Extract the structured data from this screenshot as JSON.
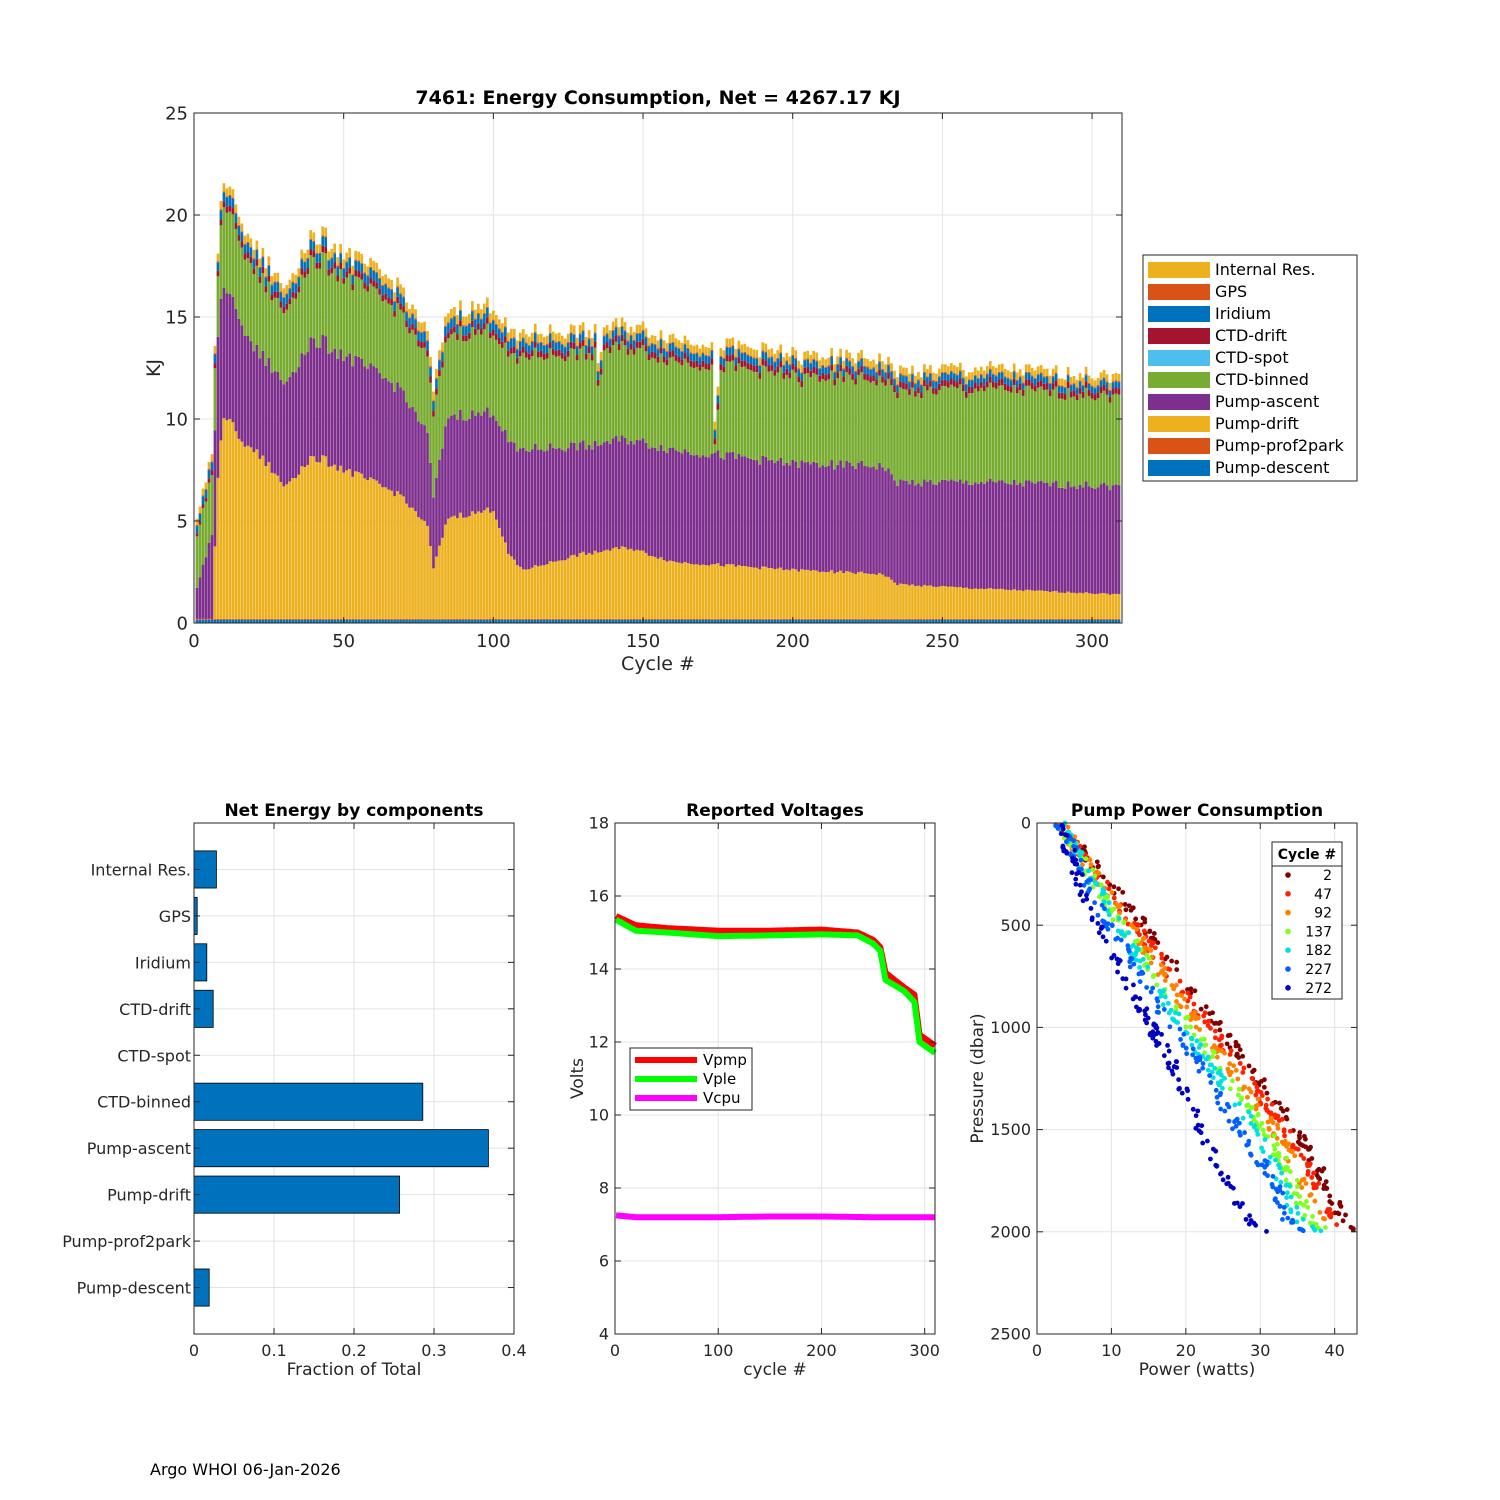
{
  "footer": "Argo WHOI 06-Jan-2026",
  "chart_data": [
    {
      "id": "energy",
      "type": "bar",
      "stacked": true,
      "title": "7461: Energy Consumption,  Net = 4267.17 KJ",
      "xlabel": "Cycle #",
      "ylabel": "KJ",
      "xlim": [
        0,
        310
      ],
      "ylim": [
        0,
        25
      ],
      "xticks": [
        0,
        50,
        100,
        150,
        200,
        250,
        300
      ],
      "yticks": [
        0,
        5,
        10,
        15,
        20,
        25
      ],
      "grid": true,
      "legend_position": "right",
      "series": [
        {
          "name": "Pump-descent",
          "color": "#0072BD",
          "anchors": [
            [
              1,
              0.15
            ],
            [
              310,
              0.15
            ]
          ]
        },
        {
          "name": "Pump-prof2park",
          "color": "#D95319",
          "anchors": [
            [
              1,
              0.05
            ],
            [
              310,
              0.05
            ]
          ]
        },
        {
          "name": "Pump-drift",
          "color": "#EDB120",
          "anchors": [
            [
              1,
              0
            ],
            [
              6,
              0
            ],
            [
              8,
              7
            ],
            [
              10,
              10
            ],
            [
              15,
              9
            ],
            [
              25,
              7.5
            ],
            [
              30,
              6.5
            ],
            [
              40,
              8
            ],
            [
              55,
              7
            ],
            [
              70,
              6
            ],
            [
              78,
              4.5
            ],
            [
              80,
              2.5
            ],
            [
              85,
              5
            ],
            [
              95,
              5.2
            ],
            [
              100,
              5.4
            ],
            [
              105,
              3.2
            ],
            [
              110,
              2.4
            ],
            [
              130,
              3.2
            ],
            [
              145,
              3.5
            ],
            [
              160,
              2.8
            ],
            [
              200,
              2.4
            ],
            [
              230,
              2.2
            ],
            [
              235,
              1.7
            ],
            [
              260,
              1.5
            ],
            [
              310,
              1.2
            ]
          ]
        },
        {
          "name": "Pump-ascent",
          "color": "#7E2F8E",
          "anchors": [
            [
              1,
              1.5
            ],
            [
              6,
              4.2
            ],
            [
              8,
              7
            ],
            [
              12,
              6
            ],
            [
              15,
              6
            ],
            [
              20,
              5
            ],
            [
              30,
              5
            ],
            [
              40,
              5.8
            ],
            [
              55,
              5.5
            ],
            [
              70,
              5.2
            ],
            [
              78,
              4.5
            ],
            [
              80,
              3.5
            ],
            [
              85,
              5
            ],
            [
              95,
              4.8
            ],
            [
              100,
              4.8
            ],
            [
              105,
              5.5
            ],
            [
              110,
              5.9
            ],
            [
              130,
              5.3
            ],
            [
              145,
              5.3
            ],
            [
              160,
              5.5
            ],
            [
              200,
              5.2
            ],
            [
              230,
              5.3
            ],
            [
              235,
              5
            ],
            [
              260,
              5.2
            ],
            [
              310,
              5.3
            ]
          ]
        },
        {
          "name": "CTD-binned",
          "color": "#77AC30",
          "anchors": [
            [
              1,
              2.5
            ],
            [
              6,
              3
            ],
            [
              8,
              3
            ],
            [
              10,
              4
            ],
            [
              20,
              3.8
            ],
            [
              30,
              3.5
            ],
            [
              40,
              4
            ],
            [
              55,
              3.8
            ],
            [
              70,
              3.8
            ],
            [
              78,
              3.7
            ],
            [
              80,
              4
            ],
            [
              85,
              4
            ],
            [
              100,
              4
            ],
            [
              105,
              4.2
            ],
            [
              110,
              4.6
            ],
            [
              130,
              4.5
            ],
            [
              145,
              4.5
            ],
            [
              160,
              4.4
            ],
            [
              200,
              4.3
            ],
            [
              230,
              4.2
            ],
            [
              235,
              4.4
            ],
            [
              260,
              4.6
            ],
            [
              310,
              4.4
            ]
          ]
        },
        {
          "name": "CTD-spot",
          "color": "#4DBEEE",
          "anchors": [
            [
              1,
              0
            ],
            [
              310,
              0
            ]
          ]
        },
        {
          "name": "CTD-drift",
          "color": "#A2142F",
          "anchors": [
            [
              1,
              0.15
            ],
            [
              10,
              0.3
            ],
            [
              100,
              0.3
            ],
            [
              110,
              0.3
            ],
            [
              310,
              0.3
            ]
          ]
        },
        {
          "name": "Iridium",
          "color": "#0072BD",
          "anchors": [
            [
              1,
              0.35
            ],
            [
              10,
              0.45
            ],
            [
              100,
              0.45
            ],
            [
              110,
              0.4
            ],
            [
              310,
              0.3
            ]
          ]
        },
        {
          "name": "GPS",
          "color": "#D95319",
          "anchors": [
            [
              1,
              0.05
            ],
            [
              310,
              0.05
            ]
          ]
        },
        {
          "name": "Internal Res.",
          "color": "#EDB120",
          "anchors": [
            [
              1,
              0.3
            ],
            [
              10,
              0.4
            ],
            [
              100,
              0.45
            ],
            [
              110,
              0.4
            ],
            [
              310,
              0.35
            ]
          ]
        }
      ],
      "legend_order": [
        "Internal Res.",
        "GPS",
        "Iridium",
        "CTD-drift",
        "CTD-spot",
        "CTD-binned",
        "Pump-ascent",
        "Pump-drift",
        "Pump-prof2park",
        "Pump-descent"
      ],
      "dips": [
        [
          135,
          1.5
        ],
        [
          136,
          1
        ],
        [
          174,
          4
        ],
        [
          175,
          2.5
        ],
        [
          203,
          0.8
        ],
        [
          258,
          0.6
        ]
      ]
    },
    {
      "id": "components",
      "type": "bar",
      "orientation": "horizontal",
      "title": "Net Energy by components",
      "xlabel": "Fraction of Total",
      "ylabel": "",
      "xlim": [
        0,
        0.4
      ],
      "xticks": [
        0,
        0.1,
        0.2,
        0.3,
        0.4
      ],
      "xtick_labels": [
        "0",
        "0.1",
        "0.2",
        "0.3",
        "0.4"
      ],
      "grid": true,
      "color": "#0072BD",
      "categories": [
        "Internal Res.",
        "GPS",
        "Iridium",
        "CTD-drift",
        "CTD-spot",
        "CTD-binned",
        "Pump-ascent",
        "Pump-drift",
        "Pump-prof2park",
        "Pump-descent"
      ],
      "values": [
        0.028,
        0.004,
        0.016,
        0.024,
        0.0,
        0.286,
        0.368,
        0.257,
        0.0,
        0.019
      ]
    },
    {
      "id": "voltages",
      "type": "line",
      "title": "Reported Voltages",
      "xlabel": "cycle #",
      "ylabel": "Volts",
      "xlim": [
        0,
        310
      ],
      "ylim": [
        4,
        18
      ],
      "xticks": [
        0,
        100,
        200,
        300
      ],
      "yticks": [
        4,
        6,
        8,
        10,
        12,
        14,
        16,
        18
      ],
      "grid": true,
      "legend_position": "middle-left",
      "series": [
        {
          "name": "Vpmp",
          "color": "#FF0000",
          "points": [
            [
              1,
              15.45
            ],
            [
              20,
              15.2
            ],
            [
              50,
              15.12
            ],
            [
              100,
              15.05
            ],
            [
              150,
              15.05
            ],
            [
              200,
              15.08
            ],
            [
              235,
              15.0
            ],
            [
              250,
              14.8
            ],
            [
              257,
              14.6
            ],
            [
              262,
              13.9
            ],
            [
              280,
              13.5
            ],
            [
              290,
              13.3
            ],
            [
              295,
              12.2
            ],
            [
              310,
              11.9
            ]
          ]
        },
        {
          "name": "Vple",
          "color": "#00FF00",
          "points": [
            [
              1,
              15.35
            ],
            [
              20,
              15.05
            ],
            [
              50,
              15.0
            ],
            [
              100,
              14.9
            ],
            [
              150,
              14.92
            ],
            [
              200,
              14.95
            ],
            [
              235,
              14.92
            ],
            [
              250,
              14.7
            ],
            [
              257,
              14.5
            ],
            [
              262,
              13.7
            ],
            [
              280,
              13.4
            ],
            [
              290,
              13.1
            ],
            [
              295,
              12.0
            ],
            [
              310,
              11.7
            ]
          ]
        },
        {
          "name": "Vcpu",
          "color": "#FF00FF",
          "points": [
            [
              1,
              7.25
            ],
            [
              20,
              7.2
            ],
            [
              50,
              7.2
            ],
            [
              100,
              7.2
            ],
            [
              150,
              7.22
            ],
            [
              200,
              7.22
            ],
            [
              250,
              7.2
            ],
            [
              310,
              7.2
            ]
          ]
        }
      ]
    },
    {
      "id": "pump",
      "type": "scatter",
      "title": "Pump Power Consumption",
      "xlabel": "Power (watts)",
      "ylabel": "Pressure (dbar)",
      "xlim": [
        0,
        43
      ],
      "ylim": [
        0,
        2500
      ],
      "y_reversed": true,
      "xticks": [
        0,
        10,
        20,
        30,
        40
      ],
      "yticks": [
        0,
        500,
        1000,
        1500,
        2000,
        2500
      ],
      "grid": true,
      "legend_title": "Cycle #",
      "legend_position": "top-right",
      "series": [
        {
          "name": "2",
          "color": "#800000",
          "band": [
            [
              3,
              0
            ],
            [
              12,
              400
            ],
            [
              22,
              900
            ],
            [
              28,
              1200
            ],
            [
              34,
              1500
            ],
            [
              37,
              1700
            ],
            [
              40,
              1950
            ],
            [
              42,
              2000
            ]
          ],
          "offset": 1.2
        },
        {
          "name": "47",
          "color": "#FF2000",
          "band": [
            [
              3,
              0
            ],
            [
              11,
              400
            ],
            [
              21,
              900
            ],
            [
              27,
              1200
            ],
            [
              33,
              1500
            ],
            [
              36,
              1700
            ],
            [
              39,
              1950
            ],
            [
              42,
              2000
            ]
          ],
          "offset": 0.5
        },
        {
          "name": "92",
          "color": "#FF8000",
          "band": [
            [
              3,
              0
            ],
            [
              11,
              420
            ],
            [
              20,
              900
            ],
            [
              26,
              1200
            ],
            [
              32,
              1500
            ],
            [
              35,
              1700
            ],
            [
              38,
              1950
            ],
            [
              41,
              2000
            ]
          ],
          "offset": 0.0
        },
        {
          "name": "137",
          "color": "#80FF20",
          "band": [
            [
              3,
              0
            ],
            [
              10,
              420
            ],
            [
              19,
              900
            ],
            [
              25,
              1200
            ],
            [
              31,
              1500
            ],
            [
              34,
              1700
            ],
            [
              37,
              1950
            ],
            [
              40,
              2000
            ]
          ],
          "offset": -0.4
        },
        {
          "name": "182",
          "color": "#00E0E0",
          "band": [
            [
              3,
              0
            ],
            [
              10,
              430
            ],
            [
              18,
              900
            ],
            [
              24,
              1200
            ],
            [
              30,
              1500
            ],
            [
              33,
              1700
            ],
            [
              36,
              1950
            ],
            [
              39,
              2000
            ]
          ],
          "offset": -0.8
        },
        {
          "name": "227",
          "color": "#0060FF",
          "band": [
            [
              3,
              0
            ],
            [
              9,
              440
            ],
            [
              17,
              900
            ],
            [
              23,
              1200
            ],
            [
              28,
              1500
            ],
            [
              32,
              1700
            ],
            [
              35,
              1950
            ],
            [
              38,
              2000
            ]
          ],
          "offset": -1.2
        },
        {
          "name": "272",
          "color": "#0000C0",
          "band": [
            [
              3,
              0
            ],
            [
              8,
              450
            ],
            [
              15,
              900
            ],
            [
              20,
              1200
            ],
            [
              24,
              1500
            ],
            [
              28,
              1800
            ],
            [
              31,
              1950
            ],
            [
              33,
              2000
            ]
          ],
          "offset": -2.5
        }
      ]
    }
  ]
}
